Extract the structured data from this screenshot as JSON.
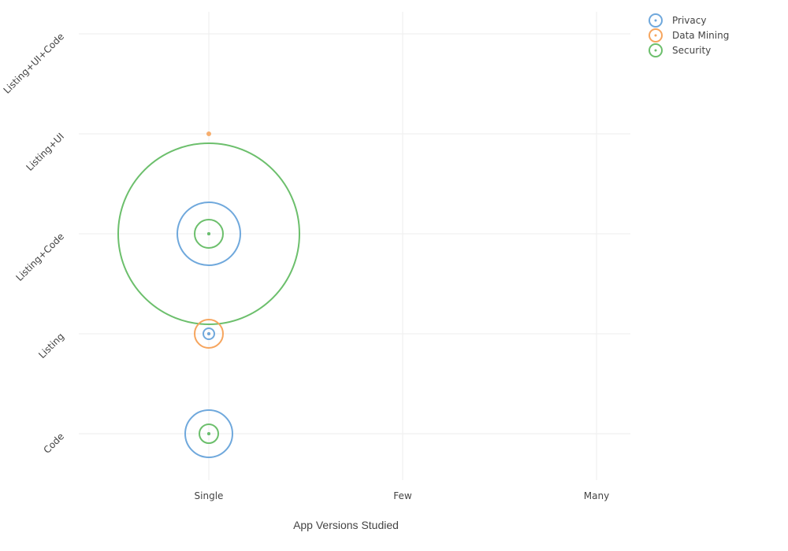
{
  "chart_data": {
    "type": "scatter",
    "xlabel": "App Versions Studied",
    "ylabel": "",
    "categories_x": [
      "Single",
      "Few",
      "Many"
    ],
    "categories_y": [
      "Code",
      "Listing",
      "Listing+Code",
      "Listing+UI",
      "Listing+UI+Code"
    ],
    "grid": true,
    "legend_position": "top-right",
    "series": [
      {
        "name": "Privacy",
        "color": "#6fa8dc",
        "points": [
          {
            "x": "Single",
            "y": "Code",
            "size": 30
          },
          {
            "x": "Single",
            "y": "Listing",
            "size": 7
          },
          {
            "x": "Single",
            "y": "Listing+Code",
            "size": 40
          }
        ]
      },
      {
        "name": "Data Mining",
        "color": "#f6a55e",
        "points": [
          {
            "x": "Single",
            "y": "Listing",
            "size": 18
          },
          {
            "x": "Single",
            "y": "Listing+UI",
            "size": 3
          }
        ]
      },
      {
        "name": "Security",
        "color": "#6cbf6c",
        "points": [
          {
            "x": "Single",
            "y": "Code",
            "size": 12
          },
          {
            "x": "Single",
            "y": "Listing+Code",
            "size": 18
          },
          {
            "x": "Single",
            "y": "Listing+Code",
            "size": 115
          }
        ]
      }
    ]
  }
}
